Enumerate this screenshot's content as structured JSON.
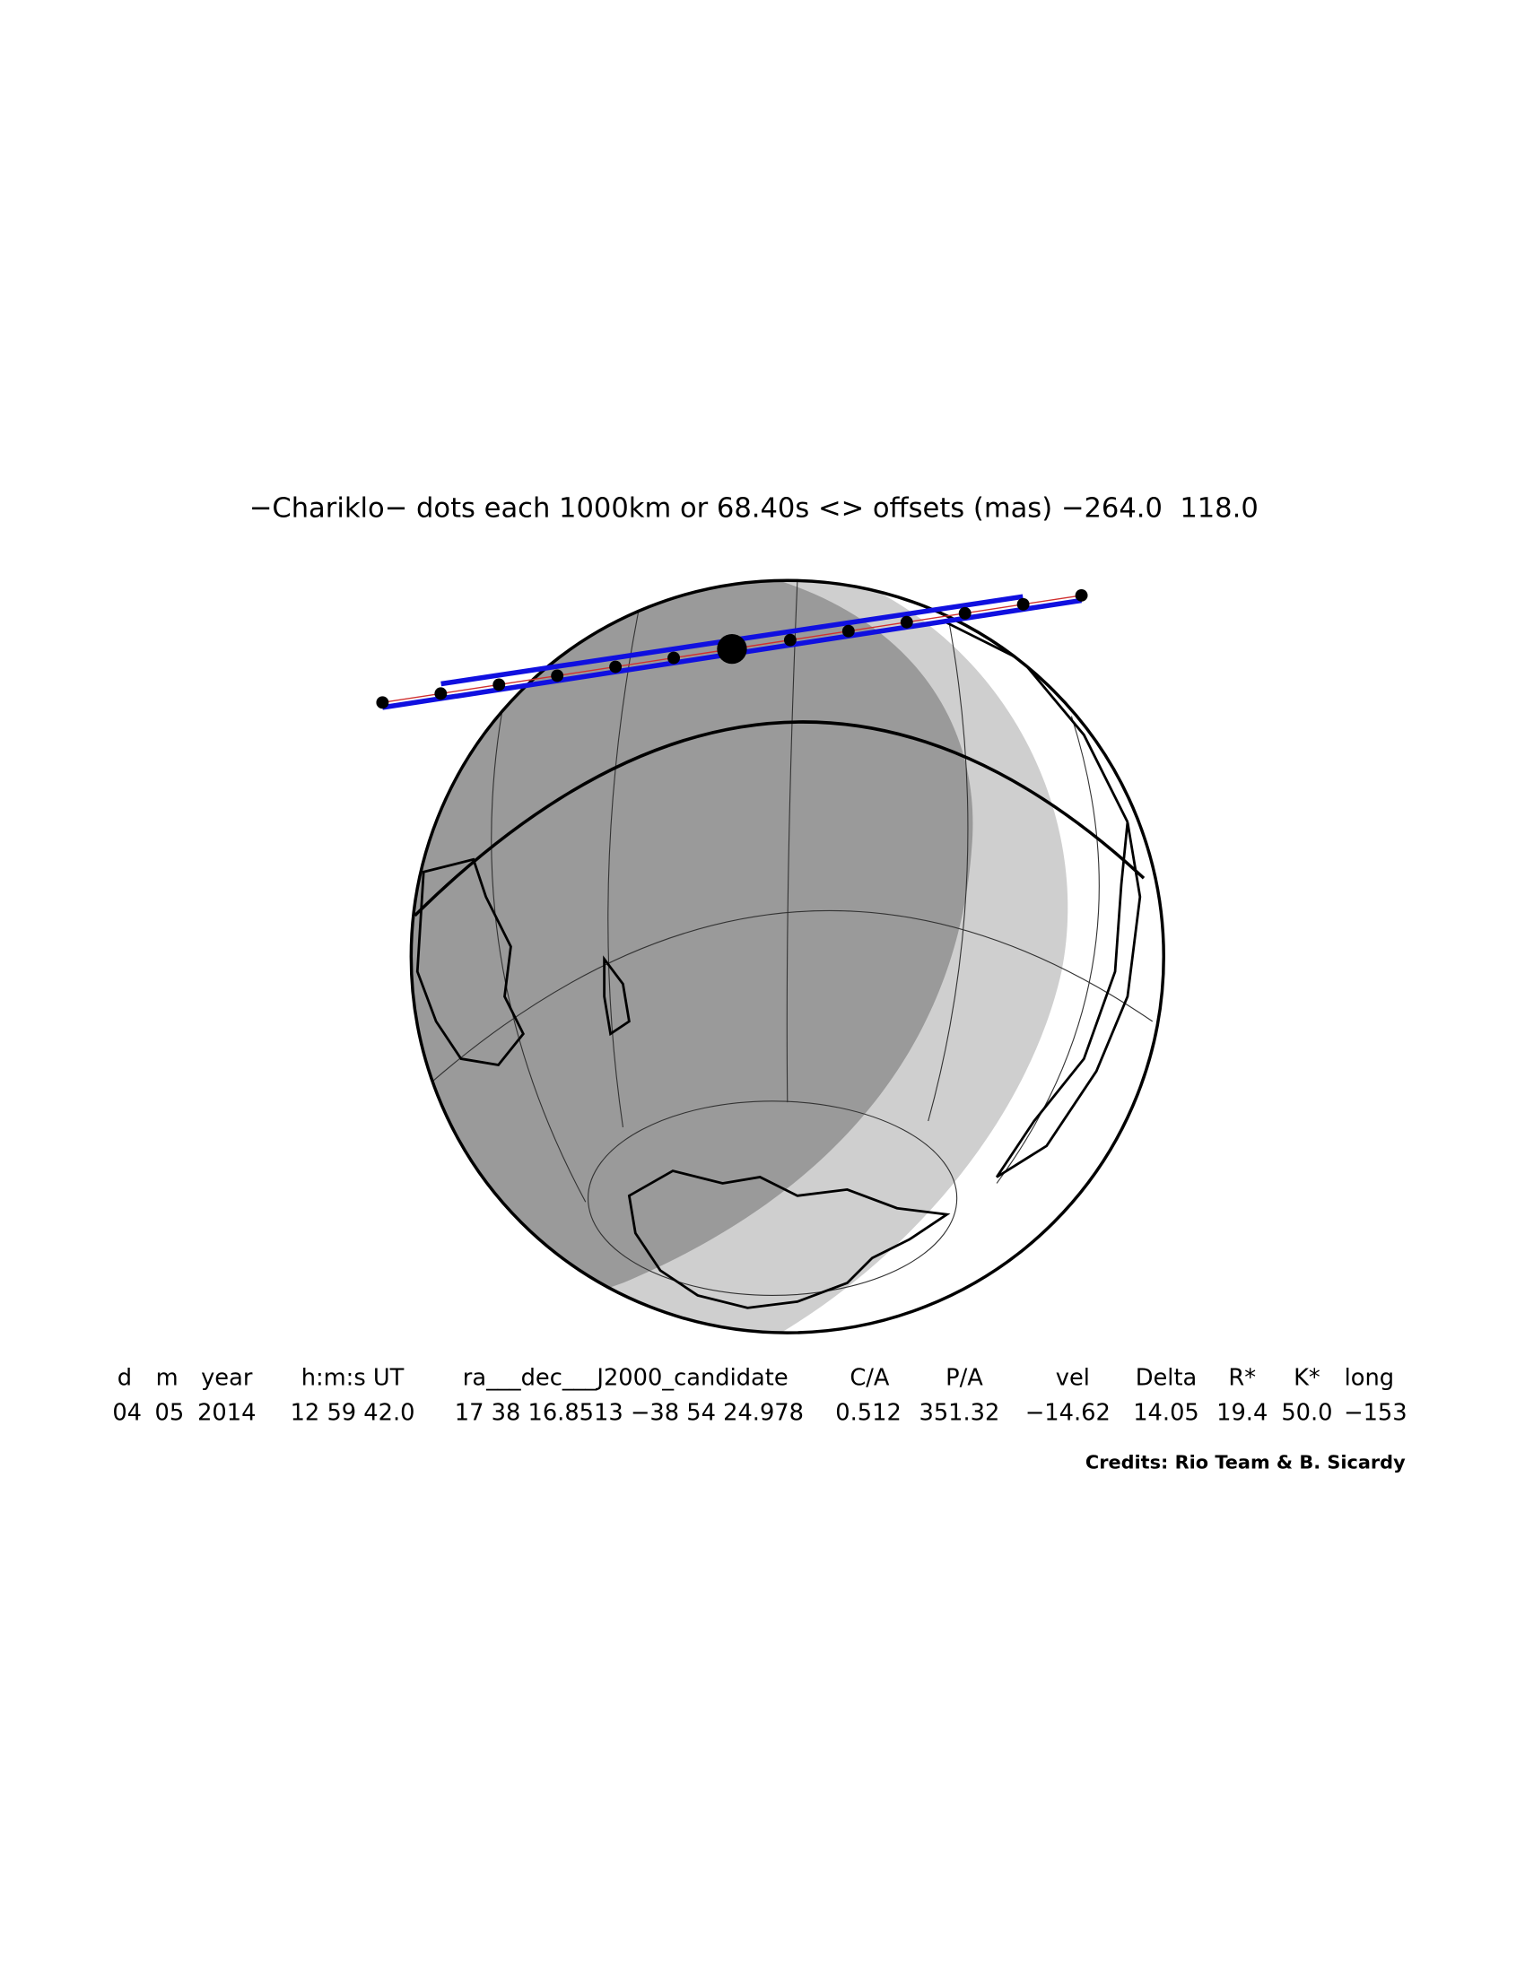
{
  "title": "−Chariklo− dots each 1000km or 68.40s <> offsets (mas) −264.0  118.0",
  "table": {
    "headers": [
      "d",
      "m",
      "year",
      "h:m:s UT",
      "ra___dec___J2000_candidate",
      "C/A",
      "P/A",
      "vel",
      "Delta",
      "R*",
      "K*",
      "long"
    ],
    "values": [
      "04",
      "05",
      "2014",
      "12 59 42.0",
      "17 38 16.8513 −38 54 24.978",
      "0.512",
      "351.32",
      "−14.62",
      "14.05",
      "19.4",
      "50.0",
      "−153"
    ]
  },
  "credits": "Credits: Rio Team & B. Sicardy"
}
